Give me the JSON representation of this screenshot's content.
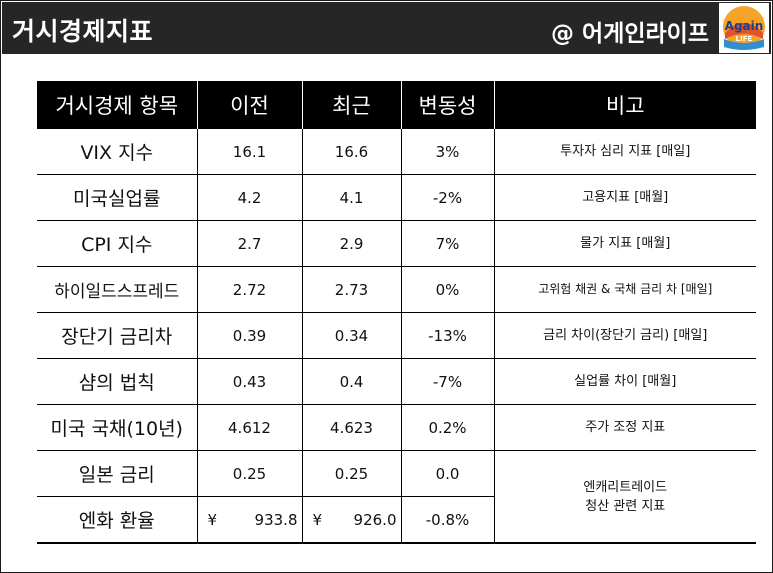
{
  "header": {
    "title": "거시경제지표",
    "brand": "@ 어게인라이프"
  },
  "logo": {
    "text": "Again",
    "subtext": "LIFE"
  },
  "table": {
    "headers": [
      "거시경제 항목",
      "이전",
      "최근",
      "변동성",
      "비고"
    ],
    "rows": [
      {
        "name": "VIX 지수",
        "prev": "16.1",
        "recent": "16.6",
        "change": "3%",
        "note": "투자자 심리 지표 [매일]"
      },
      {
        "name": "미국실업률",
        "prev": "4.2",
        "recent": "4.1",
        "change": "-2%",
        "note": "고용지표 [매월]"
      },
      {
        "name": "CPI 지수",
        "prev": "2.7",
        "recent": "2.9",
        "change": "7%",
        "note": "물가 지표 [매월]"
      },
      {
        "name": "하이일드스프레드",
        "prev": "2.72",
        "recent": "2.73",
        "change": "0%",
        "note": "고위험 채권 & 국채 금리 차 [매일]"
      },
      {
        "name": "장단기 금리차",
        "prev": "0.39",
        "recent": "0.34",
        "change": "-13%",
        "note": "금리 차이(장단기 금리) [매일]"
      },
      {
        "name": "샴의 법칙",
        "prev": "0.43",
        "recent": "0.4",
        "change": "-7%",
        "note": "실업률 차이 [매월]"
      },
      {
        "name": "미국 국채(10년)",
        "prev": "4.612",
        "recent": "4.623",
        "change": "0.2%",
        "note": "주가 조정 지표"
      },
      {
        "name": "일본 금리",
        "prev": "0.25",
        "recent": "0.25",
        "change": "0.0"
      },
      {
        "name": "엔화 환율",
        "prev_symbol": "¥",
        "prev": "933.8",
        "recent_symbol": "¥",
        "recent": "926.0",
        "change": "-0.8%"
      }
    ],
    "merged_note": {
      "line1": "엔캐리트레이드",
      "line2": "청산 관련 지표"
    }
  }
}
